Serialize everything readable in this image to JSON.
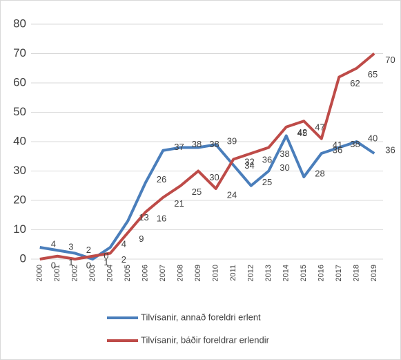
{
  "chart_data": {
    "type": "line",
    "categories": [
      "2000",
      "2001",
      "2002",
      "2003",
      "2004",
      "2005",
      "2006",
      "2007",
      "2008",
      "2009",
      "2010",
      "2011",
      "2012",
      "2013",
      "2014",
      "2015",
      "2016",
      "2017",
      "2018",
      "2019"
    ],
    "series": [
      {
        "name": "Tilvísanir, annað foreldri erlent",
        "color": "#4a7ebb",
        "values": [
          4,
          3,
          2,
          0,
          4,
          13,
          26,
          37,
          38,
          38,
          39,
          32,
          25,
          30,
          42,
          28,
          36,
          38,
          40,
          36
        ]
      },
      {
        "name": "Tilvísanir, báðir foreldrar erlendir",
        "color": "#be4b48",
        "values": [
          0,
          1,
          0,
          1,
          2,
          9,
          16,
          21,
          25,
          30,
          24,
          34,
          36,
          38,
          45,
          47,
          41,
          62,
          65,
          70
        ]
      }
    ],
    "ylim": [
      0,
      80
    ],
    "yticks": [
      0,
      10,
      20,
      30,
      40,
      50,
      60,
      70,
      80
    ],
    "grid": true,
    "legend": "bottom"
  }
}
